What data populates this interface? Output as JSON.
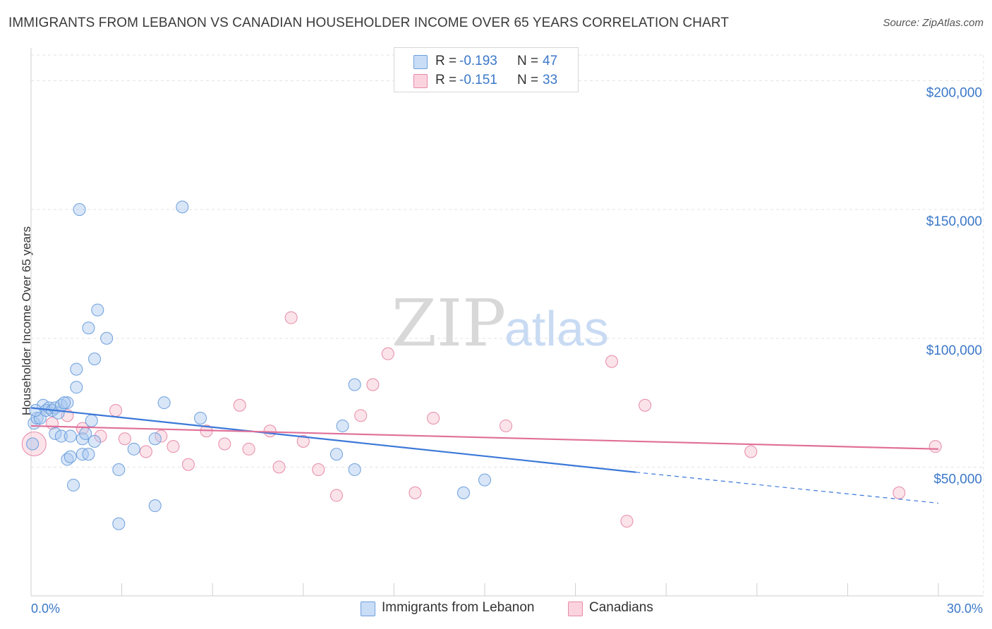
{
  "title": "IMMIGRANTS FROM LEBANON VS CANADIAN HOUSEHOLDER INCOME OVER 65 YEARS CORRELATION CHART",
  "source": "Source: ZipAtlas.com",
  "watermark": {
    "zip": "ZIP",
    "atlas": "atlas"
  },
  "legend": {
    "rows": [
      {
        "r_label": "R =",
        "r_value": "-0.193",
        "n_label": "N =",
        "n_value": "47",
        "color": "#a9c8f0",
        "border": "#6d9fdc"
      },
      {
        "r_label": "R =",
        "r_value": "-0.151",
        "n_label": "N =",
        "n_value": "33",
        "color": "#f7c0d0",
        "border": "#e68aa8"
      }
    ]
  },
  "bottom_legend": {
    "series1": "Immigrants from Lebanon",
    "series2": "Canadians"
  },
  "chart_data": {
    "type": "scatter",
    "title": "IMMIGRANTS FROM LEBANON VS CANADIAN HOUSEHOLDER INCOME OVER 65 YEARS CORRELATION CHART",
    "xlabel": "",
    "ylabel": "Householder Income Over 65 years",
    "xlim": [
      0,
      30
    ],
    "ylim": [
      0,
      210000
    ],
    "x_tick_labels": [
      "0.0%",
      "30.0%"
    ],
    "y_ticks": [
      50000,
      100000,
      150000,
      200000
    ],
    "y_tick_labels": [
      "$50,000",
      "$100,000",
      "$150,000",
      "$200,000"
    ],
    "grid": true,
    "legend_position": "top-center",
    "colors": {
      "series1": "#3b78d8",
      "series2": "#e06f98",
      "axis_text": "#3b78c8"
    },
    "series": [
      {
        "name": "Immigrants from Lebanon",
        "r": -0.193,
        "n": 47,
        "trend": {
          "x0": 0,
          "y0": 73000,
          "x1": 20,
          "y1": 48000,
          "dash_to_x": 30,
          "dash_to_y": 36000
        },
        "points": [
          [
            0.1,
            67000
          ],
          [
            0.2,
            69000
          ],
          [
            0.3,
            69000
          ],
          [
            0.4,
            74000
          ],
          [
            0.5,
            72000
          ],
          [
            0.6,
            73000
          ],
          [
            0.7,
            72000
          ],
          [
            0.8,
            73000
          ],
          [
            0.9,
            71000
          ],
          [
            1.0,
            74000
          ],
          [
            1.2,
            75000
          ],
          [
            0.8,
            63000
          ],
          [
            1.0,
            62000
          ],
          [
            1.2,
            53000
          ],
          [
            1.3,
            54000
          ],
          [
            1.3,
            62000
          ],
          [
            1.4,
            43000
          ],
          [
            1.5,
            81000
          ],
          [
            1.5,
            88000
          ],
          [
            1.6,
            150000
          ],
          [
            1.7,
            61000
          ],
          [
            1.7,
            55000
          ],
          [
            1.8,
            63000
          ],
          [
            1.9,
            55000
          ],
          [
            1.9,
            104000
          ],
          [
            2.0,
            68000
          ],
          [
            2.1,
            60000
          ],
          [
            2.1,
            92000
          ],
          [
            2.2,
            111000
          ],
          [
            2.5,
            100000
          ],
          [
            2.9,
            49000
          ],
          [
            2.9,
            28000
          ],
          [
            3.4,
            57000
          ],
          [
            4.1,
            35000
          ],
          [
            4.1,
            61000
          ],
          [
            4.4,
            75000
          ],
          [
            5.0,
            151000
          ],
          [
            5.6,
            69000
          ],
          [
            10.1,
            55000
          ],
          [
            10.3,
            66000
          ],
          [
            10.7,
            82000
          ],
          [
            10.7,
            49000
          ],
          [
            14.3,
            40000
          ],
          [
            15.0,
            45000
          ],
          [
            0.05,
            59000
          ],
          [
            0.15,
            72000
          ],
          [
            1.1,
            75000
          ]
        ]
      },
      {
        "name": "Canadians",
        "r": -0.151,
        "n": 33,
        "trend": {
          "x0": 0,
          "y0": 66000,
          "x1": 30,
          "y1": 57000
        },
        "points": [
          [
            0.1,
            59000
          ],
          [
            0.7,
            67000
          ],
          [
            1.2,
            70000
          ],
          [
            1.7,
            65000
          ],
          [
            2.3,
            62000
          ],
          [
            2.8,
            72000
          ],
          [
            3.1,
            61000
          ],
          [
            3.8,
            56000
          ],
          [
            4.3,
            62000
          ],
          [
            4.7,
            58000
          ],
          [
            5.2,
            51000
          ],
          [
            5.8,
            64000
          ],
          [
            6.4,
            59000
          ],
          [
            6.9,
            74000
          ],
          [
            7.2,
            57000
          ],
          [
            7.9,
            64000
          ],
          [
            8.2,
            50000
          ],
          [
            8.6,
            108000
          ],
          [
            9.0,
            60000
          ],
          [
            9.5,
            49000
          ],
          [
            10.1,
            39000
          ],
          [
            10.9,
            70000
          ],
          [
            11.3,
            82000
          ],
          [
            11.8,
            94000
          ],
          [
            12.7,
            40000
          ],
          [
            13.3,
            69000
          ],
          [
            15.7,
            66000
          ],
          [
            19.2,
            91000
          ],
          [
            19.7,
            29000
          ],
          [
            20.3,
            74000
          ],
          [
            23.8,
            56000
          ],
          [
            28.7,
            40000
          ],
          [
            29.9,
            58000
          ]
        ]
      }
    ]
  }
}
